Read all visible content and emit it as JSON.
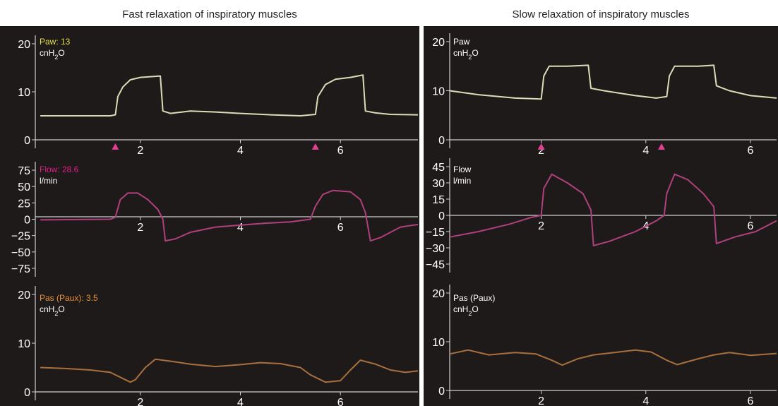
{
  "titles": {
    "left": "Fast relaxation of inspiratory muscles",
    "right": "Slow relaxation of inspiratory muscles"
  },
  "colors": {
    "background": "#1e1a19",
    "axis": "#cfcfcf",
    "paw": "#d9ddb8",
    "flow": "#b0407c",
    "pas": "#a8703f",
    "paw_label": "#e6e04a",
    "flow_label": "#e0208a",
    "pas_label": "#e8903a",
    "unit_label": "#ffffff",
    "marker": "#e0408f"
  },
  "chart_data": [
    {
      "id": "left-paw",
      "type": "line",
      "panel": "left",
      "label": "Paw: 13",
      "unit": "cnH",
      "unit_sub": "2",
      "unit_end": "O",
      "label_color_key": "paw_label",
      "x_ticks": [
        2,
        4,
        6
      ],
      "y_ticks": [
        0,
        10,
        20
      ],
      "xlim": [
        -0.1,
        7.55
      ],
      "ylim": [
        0,
        20
      ],
      "series": [
        {
          "color_key": "paw",
          "points": [
            [
              0,
              5
            ],
            [
              1.4,
              5
            ],
            [
              1.5,
              5.2
            ],
            [
              1.55,
              9
            ],
            [
              1.65,
              11
            ],
            [
              1.8,
              12.5
            ],
            [
              2.0,
              13
            ],
            [
              2.4,
              13.3
            ],
            [
              2.45,
              6
            ],
            [
              2.6,
              5.5
            ],
            [
              3.0,
              6
            ],
            [
              3.5,
              5.8
            ],
            [
              4.0,
              5.5
            ],
            [
              4.6,
              5.2
            ],
            [
              5.2,
              5
            ],
            [
              5.5,
              5.3
            ],
            [
              5.55,
              9
            ],
            [
              5.7,
              11.5
            ],
            [
              5.9,
              12.6
            ],
            [
              6.2,
              13
            ],
            [
              6.45,
              13.5
            ],
            [
              6.5,
              6
            ],
            [
              6.7,
              5.6
            ],
            [
              7.0,
              5.3
            ],
            [
              7.55,
              5.2
            ]
          ]
        }
      ],
      "markers": [
        1.5,
        5.5
      ]
    },
    {
      "id": "left-flow",
      "type": "line",
      "panel": "left",
      "label": "Flow: 28.6",
      "unit": "l/min",
      "label_color_key": "flow_label",
      "x_ticks": [
        2,
        4,
        6
      ],
      "y_ticks": [
        75,
        50,
        25,
        0,
        -25,
        -50,
        -75
      ],
      "xlim": [
        -0.1,
        7.55
      ],
      "ylim": [
        -75,
        75
      ],
      "series": [
        {
          "color_key": "flow",
          "points": [
            [
              0,
              -1
            ],
            [
              1.4,
              0
            ],
            [
              1.5,
              3
            ],
            [
              1.6,
              30
            ],
            [
              1.75,
              40
            ],
            [
              1.95,
              40
            ],
            [
              2.15,
              30
            ],
            [
              2.35,
              15
            ],
            [
              2.45,
              0
            ],
            [
              2.5,
              -33
            ],
            [
              2.7,
              -30
            ],
            [
              3.0,
              -20
            ],
            [
              3.5,
              -12
            ],
            [
              4.0,
              -9
            ],
            [
              4.5,
              -6
            ],
            [
              5.0,
              -4
            ],
            [
              5.4,
              0
            ],
            [
              5.5,
              20
            ],
            [
              5.65,
              38
            ],
            [
              5.85,
              44
            ],
            [
              6.2,
              42
            ],
            [
              6.4,
              30
            ],
            [
              6.5,
              10
            ],
            [
              6.6,
              -33
            ],
            [
              6.8,
              -28
            ],
            [
              7.2,
              -12
            ],
            [
              7.55,
              -8
            ]
          ]
        }
      ]
    },
    {
      "id": "left-pas",
      "type": "line",
      "panel": "left",
      "label": "Pas (Paux): 3.5",
      "unit": "cnH",
      "unit_sub": "2",
      "unit_end": "O",
      "label_color_key": "pas_label",
      "x_ticks": [
        2,
        4,
        6
      ],
      "y_ticks": [
        0,
        10,
        20
      ],
      "xlim": [
        -0.1,
        7.55
      ],
      "ylim": [
        0,
        20
      ],
      "series": [
        {
          "color_key": "pas",
          "points": [
            [
              0,
              5
            ],
            [
              0.5,
              4.8
            ],
            [
              1.0,
              4.5
            ],
            [
              1.4,
              4
            ],
            [
              1.6,
              3
            ],
            [
              1.8,
              2
            ],
            [
              1.9,
              2.5
            ],
            [
              2.1,
              5
            ],
            [
              2.3,
              6.7
            ],
            [
              2.6,
              6.3
            ],
            [
              3.0,
              5.7
            ],
            [
              3.5,
              5.2
            ],
            [
              4.0,
              5.6
            ],
            [
              4.4,
              6
            ],
            [
              4.8,
              5.8
            ],
            [
              5.2,
              5
            ],
            [
              5.4,
              3.5
            ],
            [
              5.7,
              2
            ],
            [
              6.0,
              2.3
            ],
            [
              6.2,
              4.5
            ],
            [
              6.4,
              6.5
            ],
            [
              6.7,
              5.7
            ],
            [
              7.0,
              4.5
            ],
            [
              7.3,
              4
            ],
            [
              7.55,
              4.3
            ]
          ]
        }
      ]
    },
    {
      "id": "right-paw",
      "type": "line",
      "panel": "right",
      "label": "Paw",
      "unit": "cnH",
      "unit_sub": "2",
      "unit_end": "O",
      "label_color_key": "unit_label",
      "x_ticks": [
        2,
        4,
        6
      ],
      "y_ticks": [
        0,
        10,
        20
      ],
      "xlim": [
        0.25,
        6.5
      ],
      "ylim": [
        0,
        20
      ],
      "series": [
        {
          "color_key": "paw",
          "points": [
            [
              0.25,
              10
            ],
            [
              0.8,
              9.2
            ],
            [
              1.5,
              8.5
            ],
            [
              2.0,
              8.3
            ],
            [
              2.05,
              13
            ],
            [
              2.15,
              15
            ],
            [
              2.5,
              15
            ],
            [
              2.9,
              15.2
            ],
            [
              2.95,
              10.5
            ],
            [
              3.2,
              10
            ],
            [
              3.8,
              9
            ],
            [
              4.2,
              8.5
            ],
            [
              4.4,
              8.8
            ],
            [
              4.45,
              13
            ],
            [
              4.55,
              15
            ],
            [
              5.0,
              15
            ],
            [
              5.3,
              15.2
            ],
            [
              5.35,
              11
            ],
            [
              5.6,
              10
            ],
            [
              6.0,
              9
            ],
            [
              6.5,
              8.5
            ]
          ]
        }
      ],
      "markers": [
        2.0,
        4.3
      ]
    },
    {
      "id": "right-flow",
      "type": "line",
      "panel": "right",
      "label": "Flow",
      "unit": "l/min",
      "label_color_key": "unit_label",
      "x_ticks": [
        2,
        4,
        6
      ],
      "y_ticks": [
        45,
        30,
        15,
        0,
        -15,
        -30,
        -45
      ],
      "xlim": [
        0.25,
        6.5
      ],
      "ylim": [
        -45,
        45
      ],
      "series": [
        {
          "color_key": "flow",
          "points": [
            [
              0.25,
              -20
            ],
            [
              0.8,
              -15
            ],
            [
              1.4,
              -8
            ],
            [
              1.8,
              -2
            ],
            [
              2.0,
              0
            ],
            [
              2.05,
              25
            ],
            [
              2.2,
              38
            ],
            [
              2.5,
              30
            ],
            [
              2.8,
              20
            ],
            [
              2.95,
              5
            ],
            [
              3.0,
              -28
            ],
            [
              3.3,
              -24
            ],
            [
              3.8,
              -15
            ],
            [
              4.2,
              -5
            ],
            [
              4.35,
              0
            ],
            [
              4.4,
              20
            ],
            [
              4.55,
              38
            ],
            [
              4.8,
              33
            ],
            [
              5.1,
              20
            ],
            [
              5.3,
              8
            ],
            [
              5.35,
              -26
            ],
            [
              5.7,
              -20
            ],
            [
              6.1,
              -15
            ],
            [
              6.5,
              -5
            ]
          ]
        }
      ]
    },
    {
      "id": "right-pas",
      "type": "line",
      "panel": "right",
      "label": "Pas (Paux)",
      "unit": "cnH",
      "unit_sub": "2",
      "unit_end": "O",
      "label_color_key": "unit_label",
      "x_ticks": [
        2,
        4,
        6
      ],
      "y_ticks": [
        0,
        10,
        20
      ],
      "xlim": [
        0.25,
        6.5
      ],
      "ylim": [
        0,
        20
      ],
      "series": [
        {
          "color_key": "pas",
          "points": [
            [
              0.25,
              7.5
            ],
            [
              0.6,
              8.3
            ],
            [
              1.0,
              7.3
            ],
            [
              1.5,
              7.8
            ],
            [
              1.9,
              7.5
            ],
            [
              2.2,
              6.2
            ],
            [
              2.4,
              5.2
            ],
            [
              2.7,
              6.5
            ],
            [
              3.0,
              7.3
            ],
            [
              3.4,
              7.8
            ],
            [
              3.8,
              8.3
            ],
            [
              4.1,
              7.9
            ],
            [
              4.4,
              6.2
            ],
            [
              4.6,
              5.3
            ],
            [
              5.0,
              6.5
            ],
            [
              5.3,
              7.3
            ],
            [
              5.6,
              7.8
            ],
            [
              6.0,
              7.2
            ],
            [
              6.5,
              7.6
            ]
          ]
        }
      ]
    }
  ]
}
